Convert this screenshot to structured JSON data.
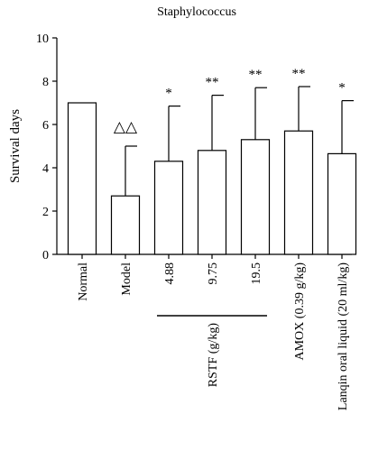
{
  "chart_data": {
    "type": "bar",
    "title": "Staphylococcus",
    "xlabel": "",
    "ylabel": "Survival days",
    "ylim": [
      0,
      10
    ],
    "yticks": [
      0,
      2,
      4,
      6,
      8,
      10
    ],
    "grid": false,
    "categories": [
      "Normal",
      "Model",
      "4.88",
      "9.75",
      "19.5",
      "AMOX (0.39 g/kg)",
      "Lanqin oral liquid (20 ml/kg)"
    ],
    "values": [
      7.0,
      2.7,
      4.3,
      4.8,
      5.3,
      5.7,
      4.65
    ],
    "error": [
      0,
      2.3,
      2.55,
      2.55,
      2.4,
      2.05,
      2.45
    ],
    "annotations": [
      "",
      "△△",
      "*",
      "**",
      "**",
      "**",
      "*"
    ],
    "group_label": {
      "text": "RSTF (g/kg)",
      "start_index": 2,
      "end_index": 4
    }
  }
}
